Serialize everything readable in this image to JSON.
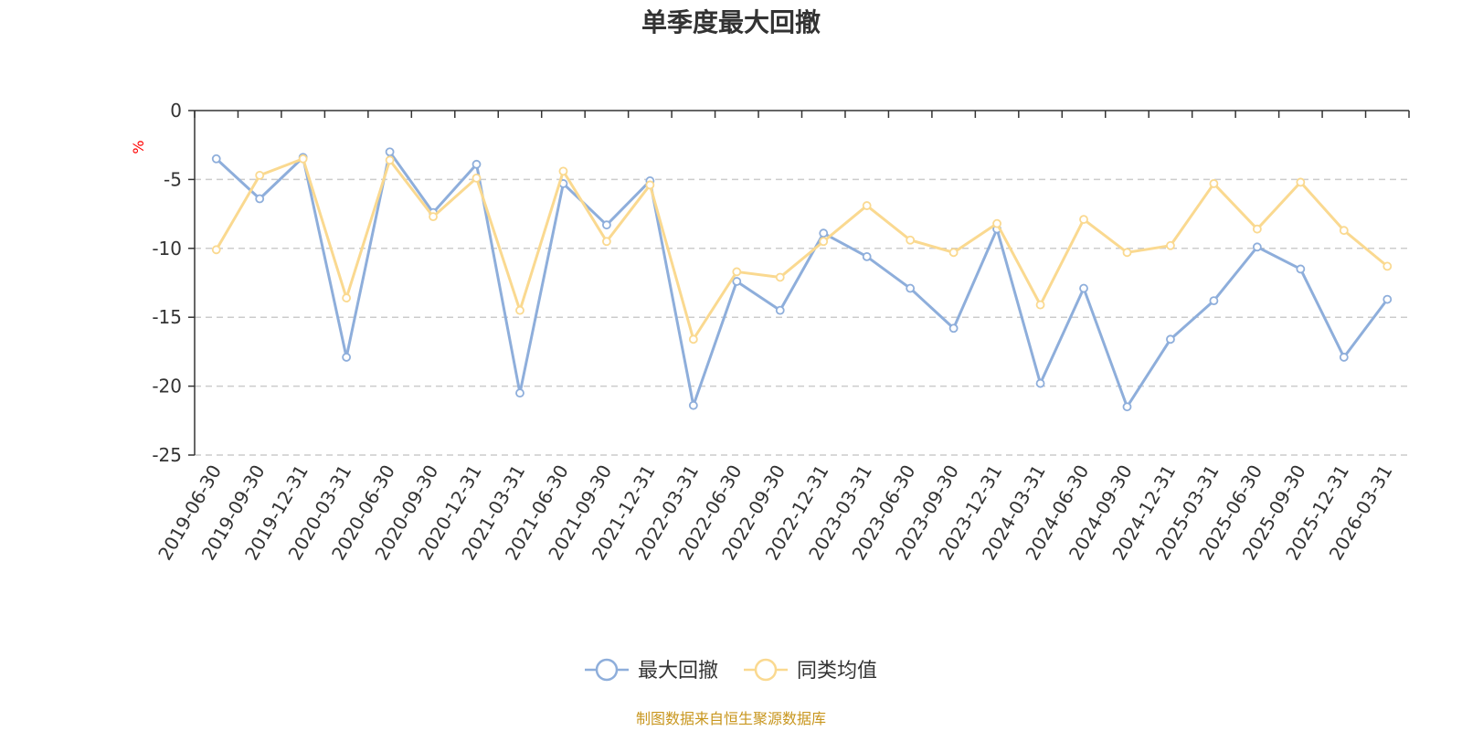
{
  "chart_data": {
    "type": "line",
    "title": "单季度最大回撤",
    "ylabel": "%",
    "ylim": [
      -25,
      0
    ],
    "yticks": [
      0,
      -5,
      -10,
      -15,
      -20,
      -25
    ],
    "categories": [
      "2019-06-30",
      "2019-09-30",
      "2019-12-31",
      "2020-03-31",
      "2020-06-30",
      "2020-09-30",
      "2020-12-31",
      "2021-03-31",
      "2021-06-30",
      "2021-09-30",
      "2021-12-31",
      "2022-03-31",
      "2022-06-30",
      "2022-09-30",
      "2022-12-31",
      "2023-03-31",
      "2023-06-30",
      "2023-09-30",
      "2023-12-31",
      "2024-03-31",
      "2024-06-30",
      "2024-09-30",
      "2024-12-31",
      "2025-03-31",
      "2025-06-30",
      "2025-09-30",
      "2025-12-31",
      "2026-03-31"
    ],
    "series": [
      {
        "name": "最大回撤",
        "color": "#8eaedb",
        "values": [
          -3.5,
          -6.4,
          -3.4,
          -17.9,
          -3.0,
          -7.4,
          -3.9,
          -20.5,
          -5.3,
          -8.3,
          -5.1,
          -21.4,
          -12.4,
          -14.5,
          -8.9,
          -10.6,
          -12.9,
          -15.8,
          -8.6,
          -19.8,
          -12.9,
          -21.5,
          -16.6,
          -13.8,
          -9.9,
          -11.5,
          -17.9,
          -13.7
        ]
      },
      {
        "name": "同类均值",
        "color": "#fad990",
        "values": [
          -10.1,
          -4.7,
          -3.5,
          -13.6,
          -3.6,
          -7.7,
          -4.9,
          -14.5,
          -4.4,
          -9.5,
          -5.4,
          -16.6,
          -11.7,
          -12.1,
          -9.5,
          -6.9,
          -9.4,
          -10.3,
          -8.2,
          -14.1,
          -7.9,
          -10.3,
          -9.8,
          -5.3,
          -8.6,
          -5.2,
          -8.7,
          -11.3
        ]
      }
    ],
    "grid": true,
    "legend_position": "bottom"
  },
  "source_text": "制图数据来自恒生聚源数据库",
  "colors": {
    "axis": "#333333",
    "grid": "#cccccc",
    "unit": "#ff0000",
    "source": "#c8961e"
  }
}
